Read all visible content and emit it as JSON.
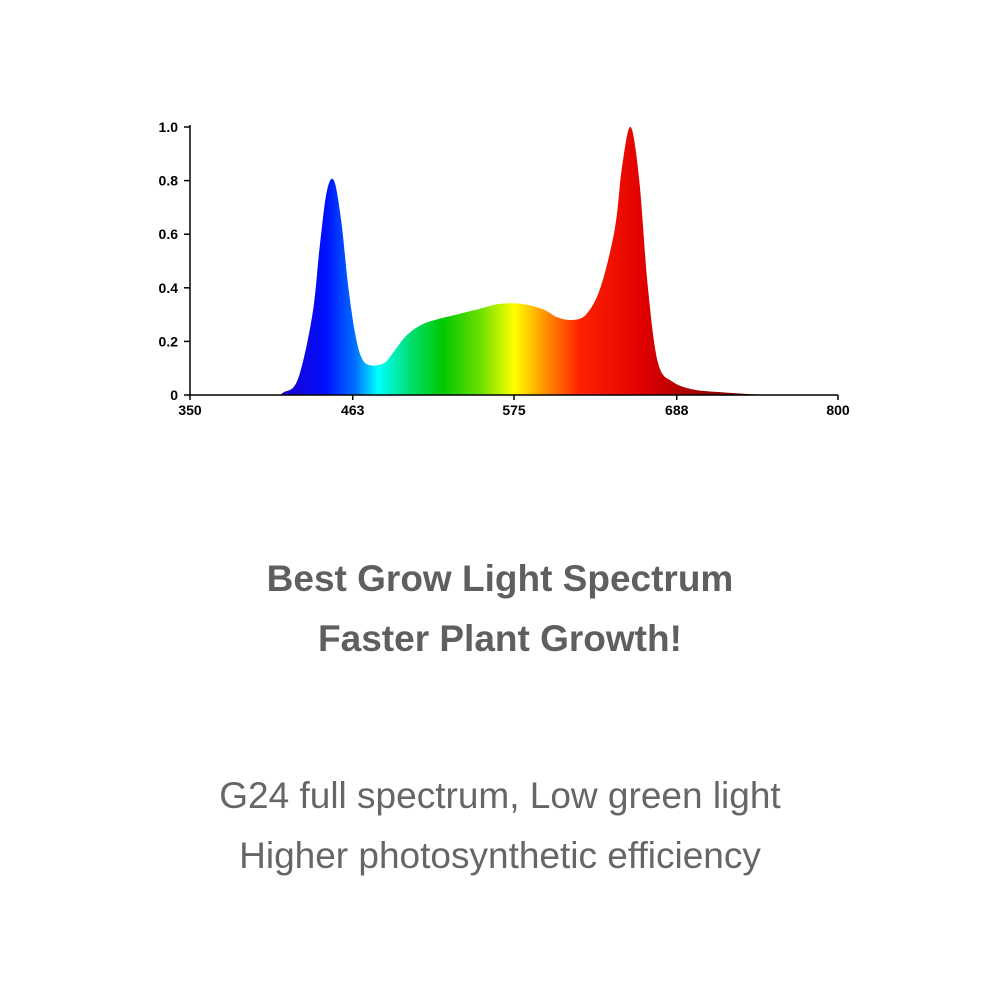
{
  "chart_data": {
    "type": "area",
    "title": "",
    "xlabel": "",
    "ylabel": "",
    "xlim": [
      350,
      800
    ],
    "ylim": [
      0,
      1.0
    ],
    "x_ticks": [
      "350",
      "463",
      "575",
      "688",
      "800"
    ],
    "y_ticks": [
      "0",
      "0.2",
      "0.4",
      "0.6",
      "0.8",
      "1.0"
    ],
    "grid": false,
    "legend": "none",
    "fill": "wavelength rainbow gradient (blue to dark red)",
    "series": [
      {
        "x": [
          350,
          405,
          415,
          425,
          435,
          440,
          445,
          450,
          455,
          460,
          465,
          470,
          477,
          485,
          490,
          500,
          510,
          520,
          535,
          550,
          565,
          580,
          595,
          605,
          615,
          625,
          635,
          645,
          650,
          656,
          662,
          668,
          675,
          685,
          700,
          720,
          740,
          760,
          800
        ],
        "values": [
          0,
          0,
          0.01,
          0.06,
          0.3,
          0.55,
          0.76,
          0.8,
          0.65,
          0.4,
          0.22,
          0.13,
          0.11,
          0.12,
          0.15,
          0.22,
          0.26,
          0.28,
          0.3,
          0.32,
          0.34,
          0.34,
          0.32,
          0.29,
          0.28,
          0.3,
          0.4,
          0.62,
          0.85,
          1.0,
          0.8,
          0.4,
          0.12,
          0.05,
          0.02,
          0.01,
          0.003,
          0,
          0
        ]
      }
    ]
  },
  "headline": {
    "line1": "Best Grow Light Spectrum",
    "line2": "Faster Plant Growth!"
  },
  "subline": {
    "line1": "G24 full spectrum, Low green light",
    "line2": "Higher photosynthetic efficiency"
  }
}
